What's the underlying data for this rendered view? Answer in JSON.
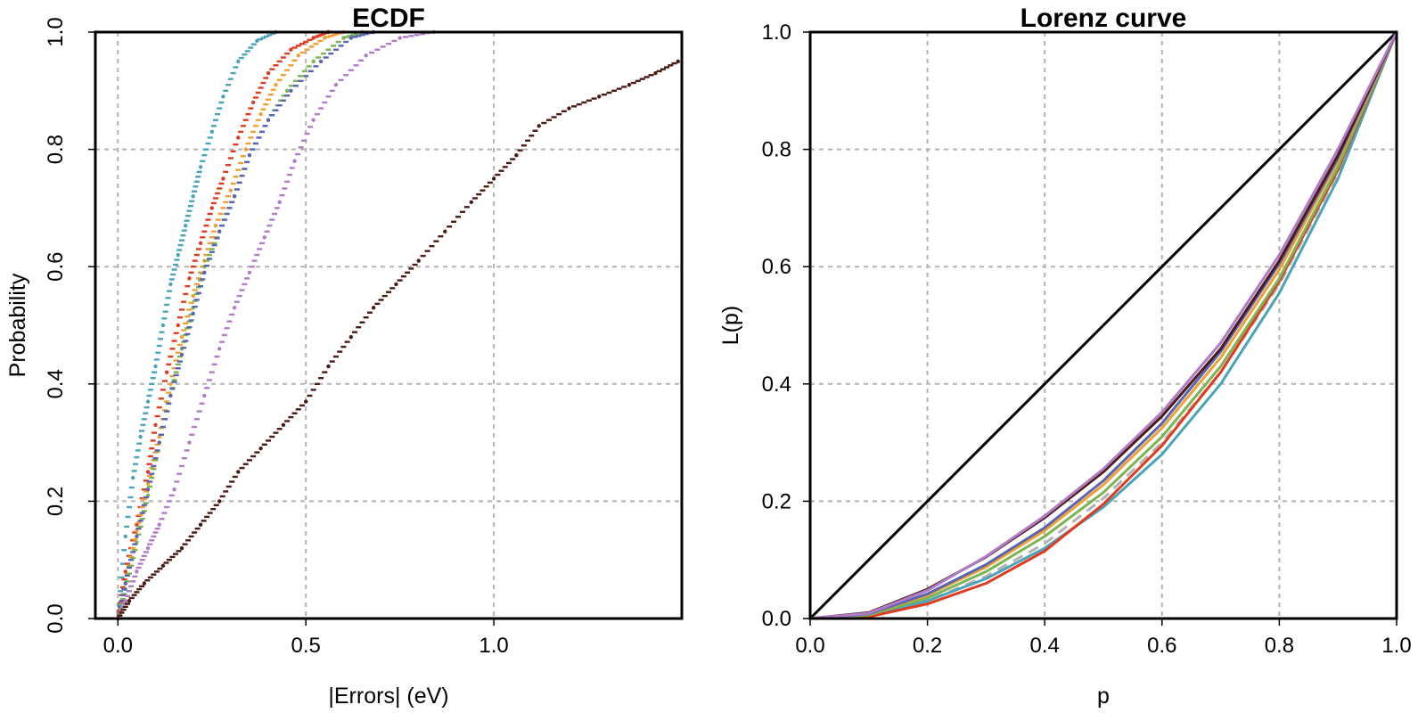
{
  "chart_data": [
    {
      "type": "scatter",
      "title": "ECDF",
      "xlabel": "|Errors| (eV)",
      "ylabel": "Probability",
      "xlim": [
        -0.06,
        1.5
      ],
      "ylim": [
        0,
        1
      ],
      "xticks": [
        "0.0",
        "0.5",
        "1.0"
      ],
      "yticks": [
        "0.0",
        "0.2",
        "0.4",
        "0.6",
        "0.8",
        "1.0"
      ],
      "grid": true,
      "series": [
        {
          "color": "#4aa4b8",
          "x": [
            0.0,
            0.02,
            0.04,
            0.06,
            0.08,
            0.1,
            0.12,
            0.14,
            0.16,
            0.18,
            0.2,
            0.22,
            0.25,
            0.28,
            0.32,
            0.37,
            0.42
          ],
          "y": [
            0.0,
            0.14,
            0.24,
            0.31,
            0.37,
            0.43,
            0.5,
            0.57,
            0.62,
            0.67,
            0.72,
            0.77,
            0.83,
            0.89,
            0.95,
            0.985,
            1.0
          ]
        },
        {
          "color": "#e03a20",
          "x": [
            0.0,
            0.02,
            0.05,
            0.08,
            0.1,
            0.13,
            0.16,
            0.19,
            0.22,
            0.25,
            0.28,
            0.32,
            0.36,
            0.4,
            0.46,
            0.52,
            0.56
          ],
          "y": [
            0.0,
            0.08,
            0.16,
            0.25,
            0.33,
            0.42,
            0.5,
            0.58,
            0.64,
            0.7,
            0.75,
            0.82,
            0.88,
            0.93,
            0.97,
            0.99,
            1.0
          ]
        },
        {
          "color": "#f0a030",
          "x": [
            0.0,
            0.02,
            0.05,
            0.08,
            0.11,
            0.14,
            0.17,
            0.2,
            0.23,
            0.26,
            0.3,
            0.34,
            0.38,
            0.42,
            0.48,
            0.55,
            0.6
          ],
          "y": [
            0.0,
            0.06,
            0.15,
            0.23,
            0.31,
            0.4,
            0.48,
            0.55,
            0.61,
            0.67,
            0.73,
            0.8,
            0.86,
            0.91,
            0.96,
            0.99,
            1.0
          ]
        },
        {
          "color": "#7cb454",
          "x": [
            0.0,
            0.02,
            0.05,
            0.08,
            0.11,
            0.14,
            0.17,
            0.2,
            0.23,
            0.27,
            0.31,
            0.35,
            0.4,
            0.45,
            0.52,
            0.6,
            0.65
          ],
          "y": [
            0.0,
            0.05,
            0.13,
            0.21,
            0.3,
            0.38,
            0.46,
            0.53,
            0.6,
            0.66,
            0.72,
            0.79,
            0.85,
            0.9,
            0.95,
            0.99,
            1.0
          ]
        },
        {
          "color": "#5a64b4",
          "x": [
            0.0,
            0.02,
            0.05,
            0.08,
            0.11,
            0.14,
            0.17,
            0.2,
            0.23,
            0.27,
            0.31,
            0.35,
            0.4,
            0.46,
            0.54,
            0.62,
            0.68
          ],
          "y": [
            0.0,
            0.06,
            0.14,
            0.22,
            0.3,
            0.38,
            0.45,
            0.52,
            0.59,
            0.66,
            0.72,
            0.79,
            0.85,
            0.9,
            0.95,
            0.99,
            1.0
          ]
        },
        {
          "color": "#b07cc8",
          "x": [
            0.0,
            0.02,
            0.05,
            0.08,
            0.11,
            0.15,
            0.19,
            0.23,
            0.27,
            0.31,
            0.35,
            0.39,
            0.43,
            0.47,
            0.52,
            0.58,
            0.66,
            0.75,
            0.84
          ],
          "y": [
            0.0,
            0.03,
            0.08,
            0.12,
            0.16,
            0.22,
            0.3,
            0.38,
            0.46,
            0.53,
            0.59,
            0.65,
            0.71,
            0.78,
            0.85,
            0.91,
            0.96,
            0.99,
            1.0
          ]
        },
        {
          "color": "#4a1a14",
          "x": [
            0.0,
            0.03,
            0.07,
            0.12,
            0.17,
            0.22,
            0.27,
            0.32,
            0.38,
            0.44,
            0.5,
            0.56,
            0.62,
            0.68,
            0.74,
            0.8,
            0.87,
            0.94,
            1.0,
            1.06,
            1.12,
            1.2,
            1.28,
            1.36,
            1.43,
            1.49
          ],
          "y": [
            0.0,
            0.03,
            0.06,
            0.09,
            0.12,
            0.16,
            0.2,
            0.25,
            0.29,
            0.33,
            0.37,
            0.43,
            0.48,
            0.53,
            0.57,
            0.61,
            0.66,
            0.71,
            0.75,
            0.79,
            0.84,
            0.87,
            0.89,
            0.91,
            0.93,
            0.95
          ]
        }
      ]
    },
    {
      "type": "line",
      "title": "Lorenz curve",
      "xlabel": "p",
      "ylabel": "L(p)",
      "xlim": [
        0,
        1
      ],
      "ylim": [
        0,
        1
      ],
      "xticks": [
        "0.0",
        "0.2",
        "0.4",
        "0.6",
        "0.8",
        "1.0"
      ],
      "yticks": [
        "0.0",
        "0.2",
        "0.4",
        "0.6",
        "0.8",
        "1.0"
      ],
      "grid": true,
      "x": [
        0.0,
        0.1,
        0.2,
        0.3,
        0.4,
        0.5,
        0.6,
        0.7,
        0.8,
        0.9,
        1.0
      ],
      "series": [
        {
          "color": "#000000",
          "values": [
            0.0,
            0.1,
            0.2,
            0.3,
            0.4,
            0.5,
            0.6,
            0.7,
            0.8,
            0.9,
            1.0
          ]
        },
        {
          "color": "#b3b3b3",
          "dashed": true,
          "values": [
            0.0,
            0.005,
            0.03,
            0.072,
            0.128,
            0.205,
            0.3,
            0.42,
            0.57,
            0.76,
            1.0
          ]
        },
        {
          "color": "#4aa4b8",
          "values": [
            0.0,
            0.005,
            0.03,
            0.068,
            0.12,
            0.19,
            0.28,
            0.4,
            0.555,
            0.75,
            1.0
          ]
        },
        {
          "color": "#e03a20",
          "values": [
            0.0,
            0.003,
            0.025,
            0.06,
            0.115,
            0.195,
            0.295,
            0.42,
            0.575,
            0.765,
            1.0
          ]
        },
        {
          "color": "#7cb454",
          "values": [
            0.0,
            0.006,
            0.035,
            0.08,
            0.14,
            0.215,
            0.31,
            0.43,
            0.58,
            0.77,
            1.0
          ]
        },
        {
          "color": "#f0a030",
          "values": [
            0.0,
            0.008,
            0.04,
            0.088,
            0.15,
            0.228,
            0.325,
            0.445,
            0.595,
            0.78,
            1.0
          ]
        },
        {
          "color": "#5a64b4",
          "values": [
            0.0,
            0.008,
            0.042,
            0.092,
            0.155,
            0.235,
            0.333,
            0.455,
            0.605,
            0.785,
            1.0
          ]
        },
        {
          "color": "#4a1a14",
          "values": [
            0.0,
            0.01,
            0.05,
            0.105,
            0.172,
            0.25,
            0.345,
            0.46,
            0.61,
            0.79,
            1.0
          ]
        },
        {
          "color": "#b07cc8",
          "values": [
            0.0,
            0.009,
            0.048,
            0.106,
            0.175,
            0.255,
            0.352,
            0.47,
            0.62,
            0.8,
            1.0
          ]
        }
      ]
    }
  ]
}
